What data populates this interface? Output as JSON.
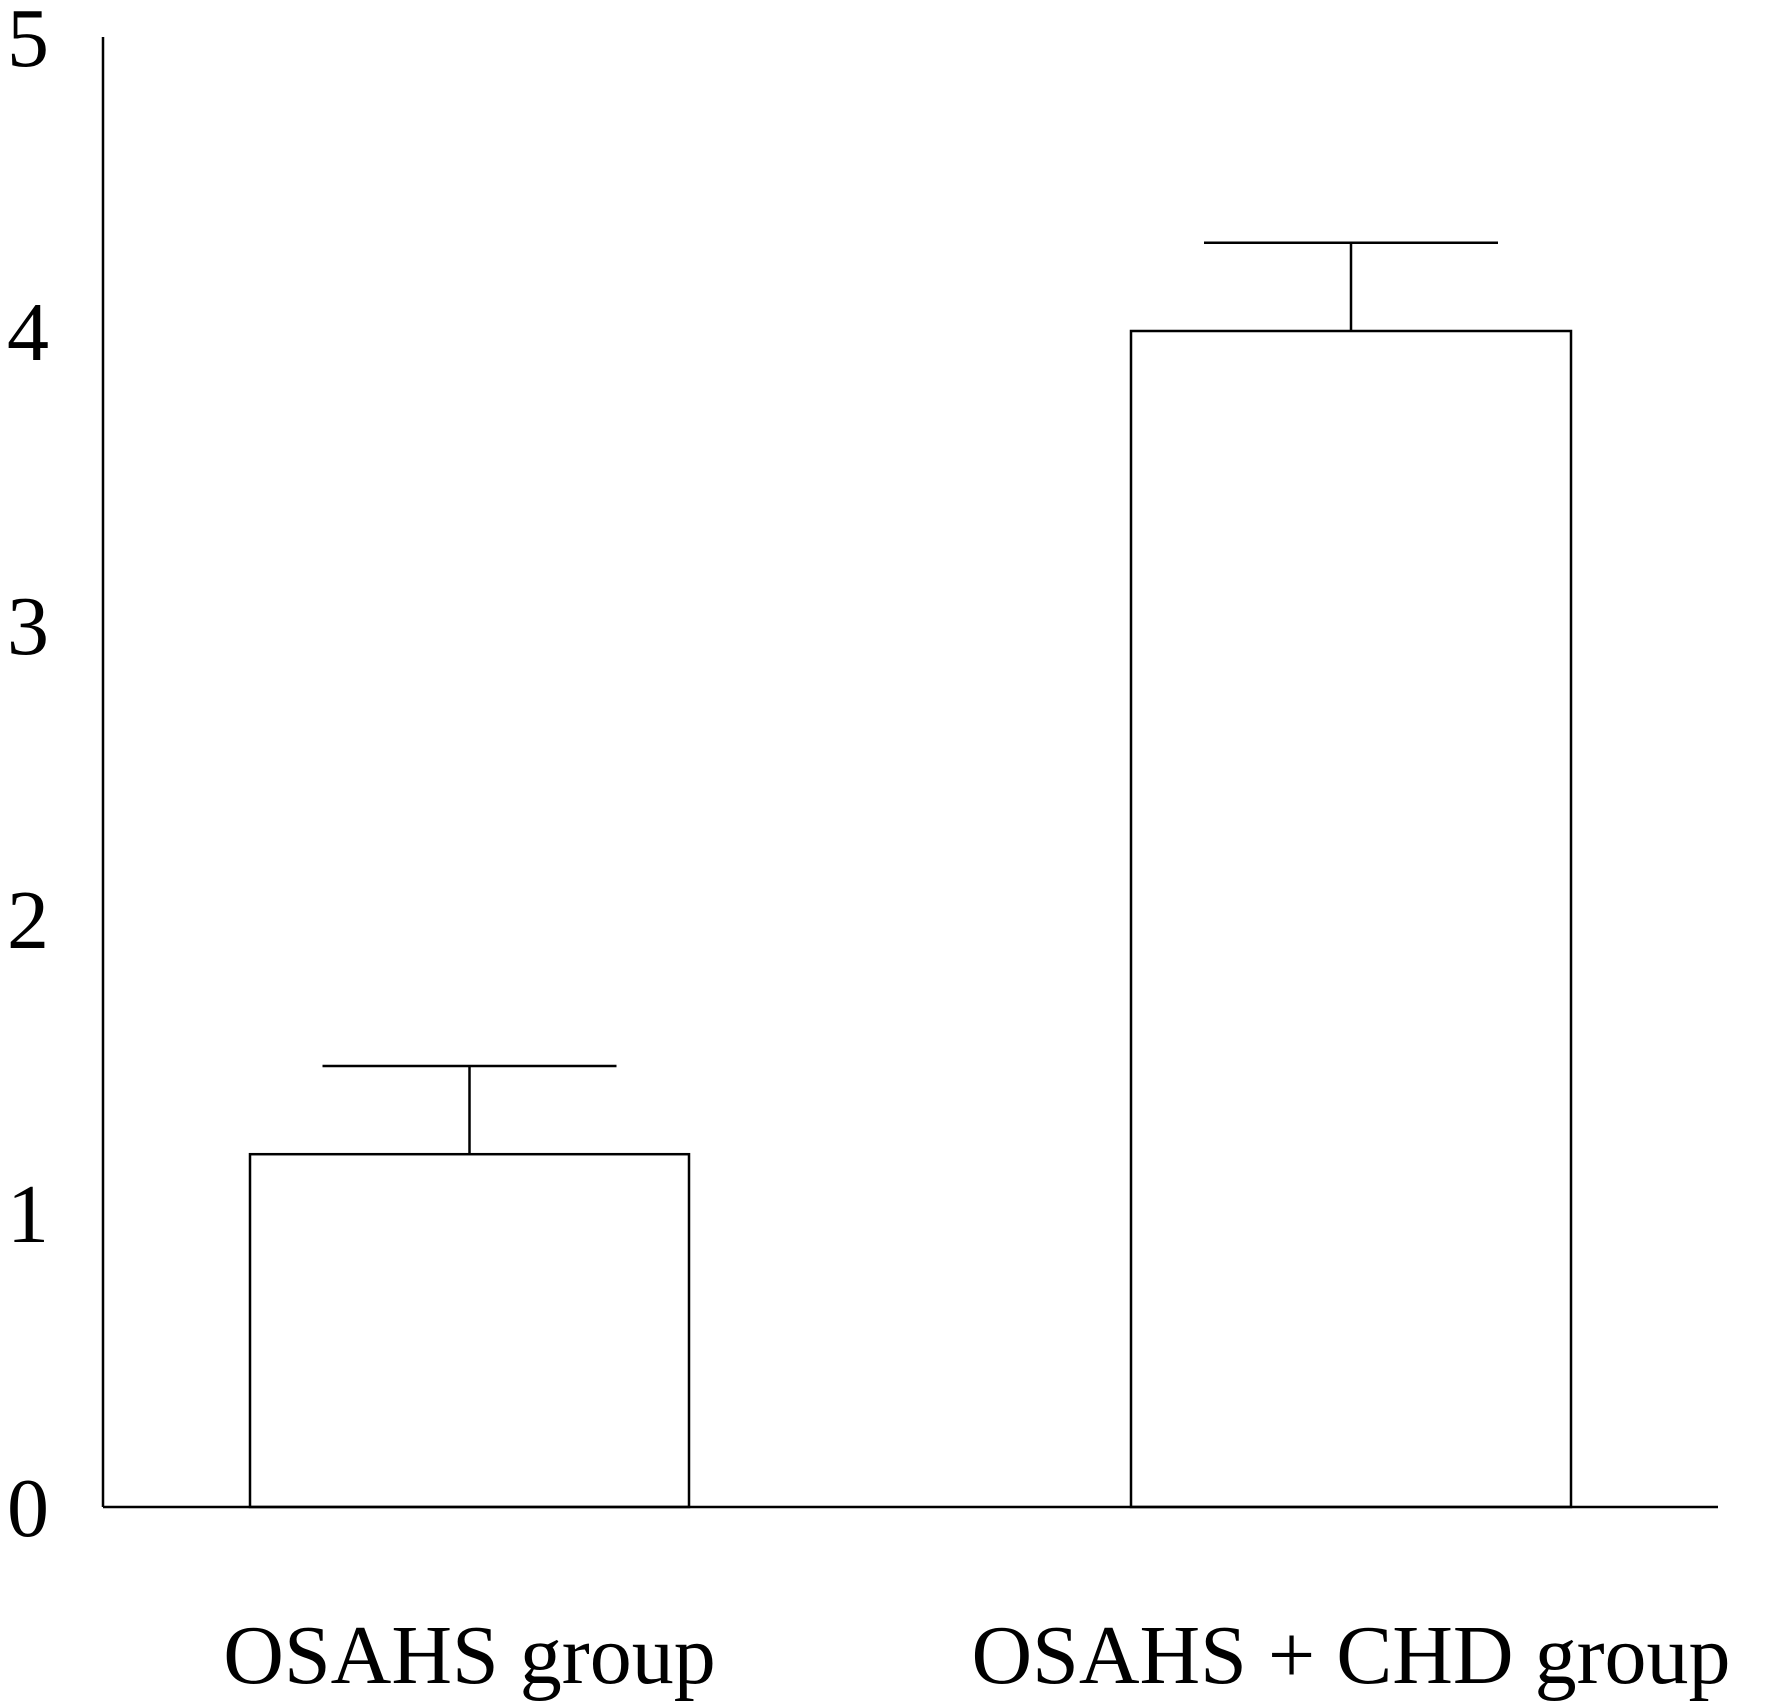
{
  "chart_data": {
    "type": "bar",
    "title": "",
    "xlabel": "",
    "ylabel": "",
    "categories": [
      "OSAHS group",
      "OSAHS + CHD group"
    ],
    "values": [
      1.2,
      4.0
    ],
    "error_upper": [
      1.5,
      4.3
    ],
    "ylim": [
      0,
      5
    ],
    "yticks": [
      "0",
      "1",
      "2",
      "3",
      "4",
      "5"
    ],
    "grid": false,
    "legend": "none",
    "colors": {
      "bar_fill": "#ffffff",
      "bar_stroke": "#000000",
      "axis": "#000000"
    }
  }
}
